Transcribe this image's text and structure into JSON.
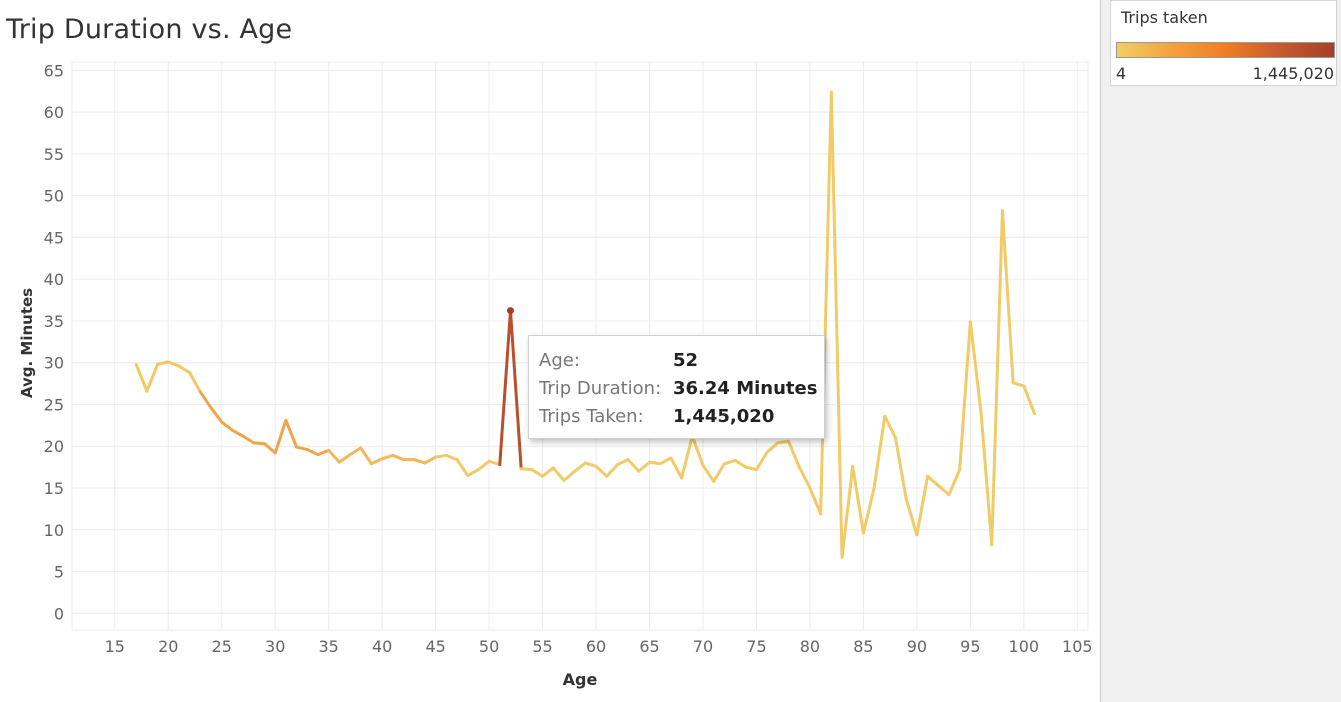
{
  "chart_data": {
    "type": "line",
    "title": "Trip Duration vs. Age",
    "xlabel": "Age",
    "ylabel": "Avg. Minutes",
    "xlim": [
      11,
      106
    ],
    "ylim": [
      -2,
      66
    ],
    "xticks": [
      15,
      20,
      25,
      30,
      35,
      40,
      45,
      50,
      55,
      60,
      65,
      70,
      75,
      80,
      85,
      90,
      95,
      100,
      105
    ],
    "yticks": [
      0,
      5,
      10,
      15,
      20,
      25,
      30,
      35,
      40,
      45,
      50,
      55,
      60,
      65
    ],
    "grid": true,
    "x": [
      17,
      18,
      19,
      20,
      21,
      22,
      23,
      24,
      25,
      26,
      27,
      28,
      29,
      30,
      31,
      32,
      33,
      34,
      35,
      36,
      37,
      38,
      39,
      40,
      41,
      42,
      43,
      44,
      45,
      46,
      47,
      48,
      49,
      50,
      51,
      52,
      53,
      54,
      55,
      56,
      57,
      58,
      59,
      60,
      61,
      62,
      63,
      64,
      65,
      66,
      67,
      68,
      69,
      70,
      71,
      72,
      73,
      74,
      75,
      76,
      77,
      78,
      79,
      80,
      81,
      82,
      83,
      84,
      85,
      86,
      87,
      88,
      89,
      90,
      91,
      92,
      93,
      94,
      95,
      96,
      97,
      98,
      99,
      100,
      101
    ],
    "y": [
      29.8,
      26.6,
      29.8,
      30.1,
      29.6,
      28.8,
      26.5,
      24.6,
      22.9,
      21.9,
      21.2,
      20.4,
      20.3,
      19.2,
      23.1,
      19.9,
      19.6,
      19.0,
      19.5,
      18.1,
      19.0,
      19.8,
      17.9,
      18.5,
      18.9,
      18.4,
      18.4,
      18.0,
      18.7,
      18.9,
      18.4,
      16.5,
      17.2,
      18.2,
      17.8,
      36.24,
      17.3,
      17.2,
      16.4,
      17.4,
      15.9,
      17.0,
      18.0,
      17.6,
      16.4,
      17.8,
      18.4,
      17.0,
      18.1,
      17.9,
      18.6,
      16.2,
      21.2,
      17.7,
      15.8,
      17.9,
      18.3,
      17.5,
      17.2,
      19.3,
      20.4,
      20.6,
      17.5,
      15.0,
      11.9,
      62.4,
      6.7,
      17.6,
      9.6,
      15.0,
      23.6,
      21.0,
      13.7,
      9.4,
      16.4,
      15.3,
      14.2,
      17.2,
      34.9,
      24.0,
      8.2,
      48.2,
      27.6,
      27.2,
      23.9
    ],
    "trips_taken_range": [
      4,
      1445020
    ],
    "highlight": {
      "age": 52,
      "trip_duration": 36.24,
      "trips_taken": 1445020
    }
  },
  "legend": {
    "title": "Trips taken",
    "min_label": "4",
    "max_label": "1,445,020",
    "colors": [
      "#f0cf67",
      "#f4a23c",
      "#f07d24",
      "#c85a2c",
      "#a53f2c"
    ]
  },
  "tooltip": {
    "age_label": "Age:",
    "age_value": "52",
    "duration_label": "Trip Duration:",
    "duration_value": "36.24 Minutes",
    "trips_label": "Trips Taken:",
    "trips_value": "1,445,020"
  },
  "colors": {
    "background": "#ffffff",
    "grid": "#ececec",
    "axis_text": "#666666",
    "title_text": "#333333",
    "side_panel": "#f0f0f0"
  }
}
